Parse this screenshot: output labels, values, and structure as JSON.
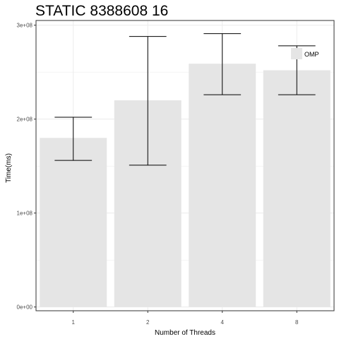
{
  "chart_data": {
    "type": "bar",
    "title": "STATIC 8388608 16",
    "xlabel": "Number of Threads",
    "ylabel": "Time(ms)",
    "categories": [
      "1",
      "2",
      "4",
      "8"
    ],
    "series": [
      {
        "name": "OMP",
        "values": [
          180000000,
          220000000,
          259000000,
          252000000
        ],
        "error_low": [
          156000000,
          151000000,
          226000000,
          226000000
        ],
        "error_high": [
          202000000,
          288000000,
          291000000,
          278000000
        ]
      }
    ],
    "ylim": [
      -4000000,
      305000000
    ],
    "yticks": [
      0,
      100000000,
      200000000,
      300000000
    ],
    "ytick_labels": [
      "0e+00",
      "1e+08",
      "2e+08",
      "3e+08"
    ],
    "grid": true,
    "legend_position": "top-right",
    "bar_color": "#e5e5e5",
    "grid_color": "#ebebeb",
    "frame_color": "#333333"
  }
}
